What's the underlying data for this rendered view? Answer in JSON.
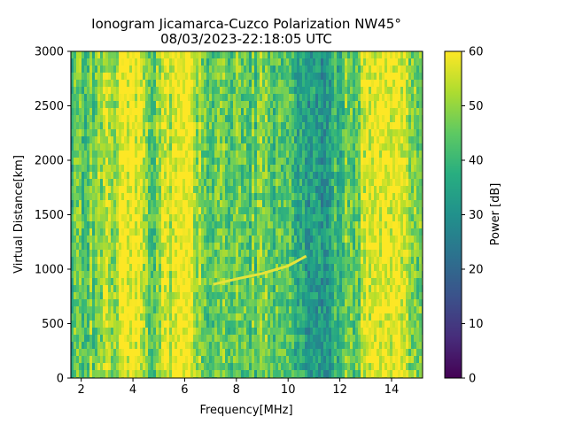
{
  "chart_data": {
    "type": "heatmap",
    "title": "Ionogram Jicamarca-Cuzco Polarization NW45°",
    "subtitle": "08/03/2023-22:18:05 UTC",
    "xlabel": "Frequency[MHz]",
    "ylabel": "Virtual Distance[km]",
    "xlim": [
      1.6,
      15.2
    ],
    "ylim": [
      0,
      3000
    ],
    "x_ticks": [
      2,
      4,
      6,
      8,
      10,
      12,
      14
    ],
    "y_ticks": [
      0,
      500,
      1000,
      1500,
      2000,
      2500,
      3000
    ],
    "colorbar": {
      "label": "Power [dB]",
      "range": [
        0,
        60
      ],
      "ticks": [
        0,
        10,
        20,
        30,
        40,
        50,
        60
      ],
      "colormap": "viridis"
    },
    "column_power_profile": {
      "frequency_mhz": [
        1.6,
        2.0,
        2.5,
        3.0,
        3.2,
        3.5,
        3.8,
        4.0,
        4.3,
        4.6,
        4.9,
        5.2,
        5.6,
        6.0,
        6.3,
        6.6,
        7.0,
        7.5,
        8.0,
        8.5,
        9.0,
        9.5,
        10.0,
        10.5,
        11.0,
        11.3,
        11.5,
        11.8,
        12.2,
        12.6,
        13.0,
        13.4,
        13.8,
        14.2,
        14.6,
        15.2
      ],
      "mean_power_db": [
        42,
        44,
        46,
        54,
        48,
        58,
        60,
        60,
        58,
        48,
        44,
        54,
        56,
        60,
        56,
        50,
        44,
        46,
        48,
        44,
        46,
        44,
        40,
        36,
        34,
        30,
        33,
        38,
        46,
        42,
        58,
        56,
        60,
        60,
        54,
        44
      ]
    },
    "trace": {
      "frequency_mhz": [
        7.1,
        8.0,
        9.0,
        10.0,
        10.7
      ],
      "virtual_distance_km": [
        860,
        910,
        960,
        1030,
        1120
      ]
    }
  }
}
